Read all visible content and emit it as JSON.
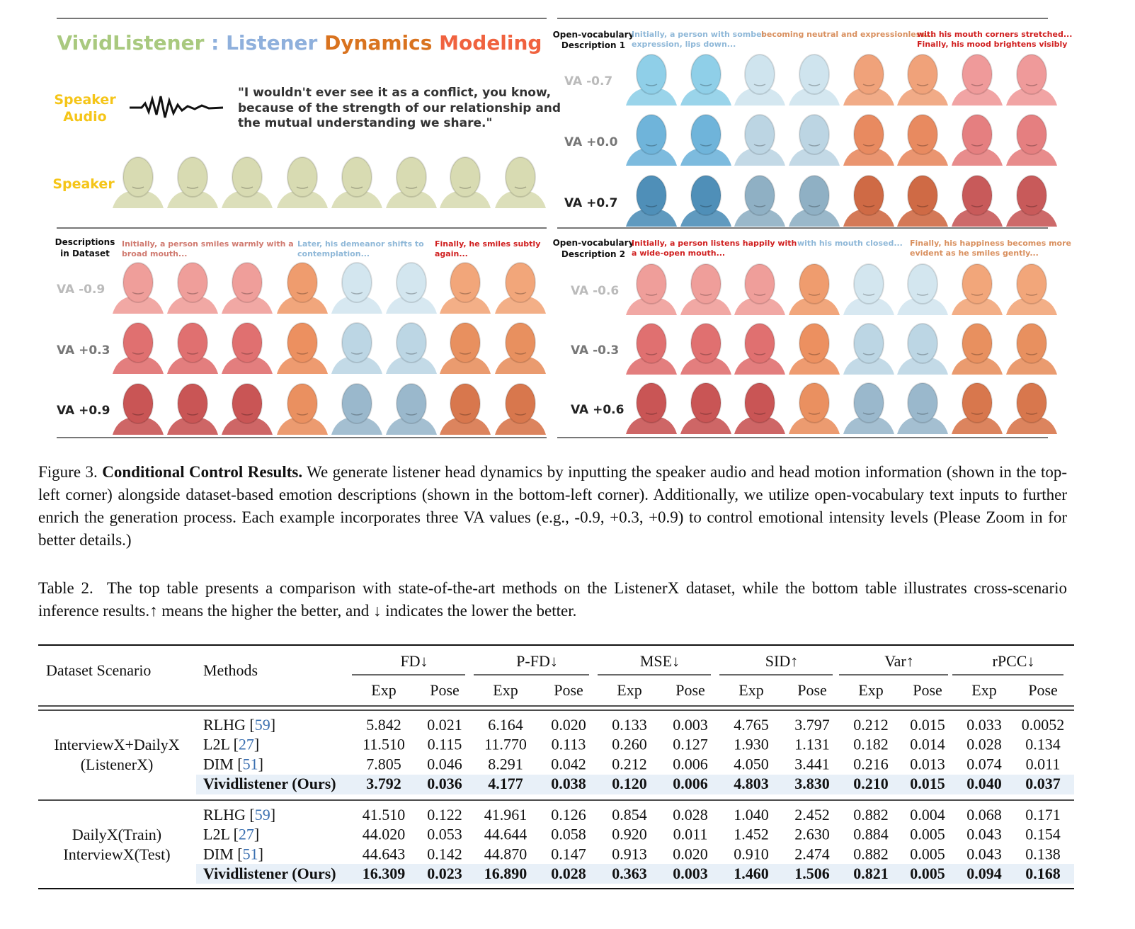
{
  "figure": {
    "title": [
      "VividListener",
      ":",
      "Listener",
      "Dynamics",
      "Modeling"
    ],
    "speaker_audio_label": [
      "Speaker",
      "Audio"
    ],
    "quote": [
      "\"I wouldn't ever see it as a conflict, you know,",
      "because of the strength of our relationship and",
      "the mutual understanding we share.\""
    ],
    "speaker_label": "Speaker",
    "panels": [
      {
        "label": [
          "Open-vocabulary",
          "Description 1"
        ],
        "descriptions": [
          [
            "Initially, a person with somber",
            "expression, lips down..."
          ],
          [
            "becoming neutral and expressionless..."
          ],
          [
            "with his mouth corners stretched...",
            "Finally, his mood brightens visibly"
          ]
        ],
        "rows": [
          "VA -0.7",
          "VA +0.0",
          "VA +0.7"
        ]
      },
      {
        "label": [
          "Descriptions",
          "in Dataset"
        ],
        "descriptions": [
          [
            "Initially, a person smiles warmly with a",
            "broad mouth..."
          ],
          [
            "Later, his demeanor shifts to",
            "contemplation..."
          ],
          [
            "Finally, he smiles subtly",
            "again..."
          ]
        ],
        "rows": [
          "VA -0.9",
          "VA +0.3",
          "VA +0.9"
        ]
      },
      {
        "label": [
          "Open-vocabulary",
          "Description 2"
        ],
        "descriptions": [
          [
            "Initially, a person listens happily with",
            "a wide-open mouth..."
          ],
          [
            "with his mouth closed..."
          ],
          [
            "Finally, his happiness becomes more",
            "evident as he smiles gently..."
          ]
        ],
        "rows": [
          "VA -0.6",
          "VA -0.3",
          "VA +0.6"
        ]
      }
    ]
  },
  "caption": {
    "label": "Figure 3.",
    "title": "Conditional Control Results.",
    "text": "We generate listener head dynamics by inputting the speaker audio and head motion information (shown in the top-left corner) alongside dataset-based emotion descriptions (shown in the bottom-left corner).  Additionally, we utilize open-vocabulary text inputs to further enrich the generation process. Each example incorporates three VA values (e.g., -0.9, +0.3, +0.9) to control emotional intensity levels (Please Zoom in for better details.)"
  },
  "table_caption": {
    "label": "Table 2.",
    "text": "The top table presents a comparison with state-of-the-art methods on the ListenerX dataset, while the bottom table illustrates cross-scenario inference results.↑ means the higher the better, and ↓ indicates the lower the better."
  },
  "table": {
    "headers": [
      "Dataset Scenario",
      "Methods"
    ],
    "groups": [
      "FD↓",
      "P-FD↓",
      "MSE↓",
      "SID↑",
      "Var↑",
      "rPCC↓"
    ],
    "subheaders": [
      "Exp",
      "Pose",
      "Exp",
      "Pose",
      "Exp",
      "Pose",
      "Exp",
      "Pose",
      "Exp",
      "Pose",
      "Exp",
      "Pose"
    ],
    "sections": [
      {
        "scenario": [
          "InterviewX+DailyX",
          "(ListenerX)"
        ],
        "rows": [
          {
            "method": "RLHG",
            "cite": [
              "[",
              "59",
              "]"
            ],
            "values": [
              "5.842",
              "0.021",
              "6.164",
              "0.020",
              "0.133",
              "0.003",
              "4.765",
              "3.797",
              "0.212",
              "0.015",
              "0.033",
              "0.0052"
            ]
          },
          {
            "method": "L2L",
            "cite": [
              "[",
              "27",
              "]"
            ],
            "values": [
              "11.510",
              "0.115",
              "11.770",
              "0.113",
              "0.260",
              "0.127",
              "1.930",
              "1.131",
              "0.182",
              "0.014",
              "0.028",
              "0.134"
            ]
          },
          {
            "method": "DIM",
            "cite": [
              "[",
              "51",
              "]"
            ],
            "values": [
              "7.805",
              "0.046",
              "8.291",
              "0.042",
              "0.212",
              "0.006",
              "4.050",
              "3.441",
              "0.216",
              "0.013",
              "0.074",
              "0.011"
            ]
          },
          {
            "method": "Vividlistener (Ours)",
            "values": [
              "3.792",
              "0.036",
              "4.177",
              "0.038",
              "0.120",
              "0.006",
              "4.803",
              "3.830",
              "0.210",
              "0.015",
              "0.040",
              "0.037"
            ]
          }
        ]
      },
      {
        "scenario": [
          "DailyX(Train)",
          "InterviewX(Test)"
        ],
        "rows": [
          {
            "method": "RLHG",
            "cite": [
              "[",
              "59",
              "]"
            ],
            "values": [
              "41.510",
              "0.122",
              "41.961",
              "0.126",
              "0.854",
              "0.028",
              "1.040",
              "2.452",
              "0.882",
              "0.004",
              "0.068",
              "0.171"
            ]
          },
          {
            "method": "L2L",
            "cite": [
              "[",
              "27",
              "]"
            ],
            "values": [
              "44.020",
              "0.053",
              "44.644",
              "0.058",
              "0.920",
              "0.011",
              "1.452",
              "2.630",
              "0.884",
              "0.005",
              "0.043",
              "0.154"
            ]
          },
          {
            "method": "DIM",
            "cite": [
              "[",
              "51",
              "]"
            ],
            "values": [
              "44.643",
              "0.142",
              "44.870",
              "0.147",
              "0.913",
              "0.020",
              "0.910",
              "2.474",
              "0.882",
              "0.005",
              "0.043",
              "0.138"
            ]
          },
          {
            "method": "Vividlistener (Ours)",
            "values": [
              "16.309",
              "0.023",
              "16.890",
              "0.028",
              "0.363",
              "0.003",
              "1.460",
              "1.506",
              "0.821",
              "0.005",
              "0.094",
              "0.168"
            ]
          }
        ]
      }
    ]
  }
}
